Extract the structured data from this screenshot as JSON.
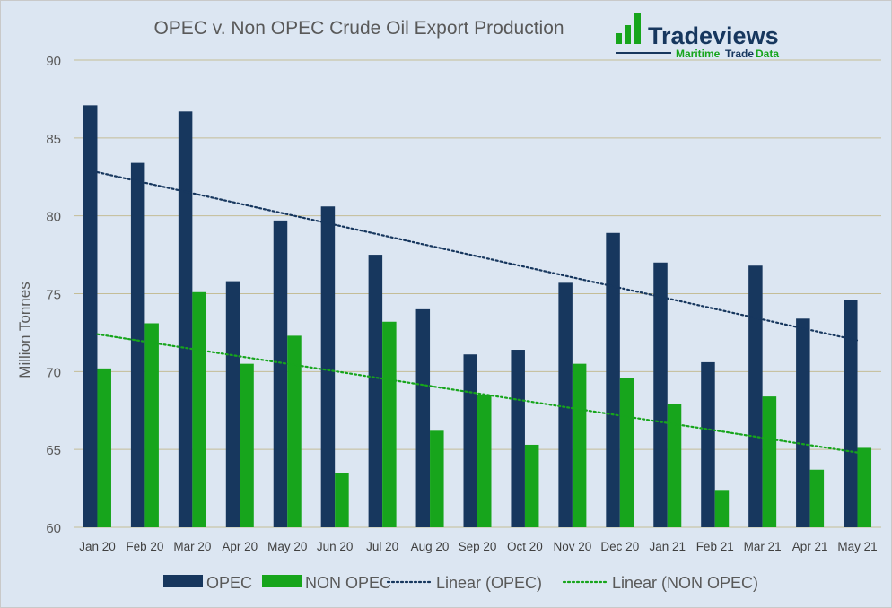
{
  "chart_data": {
    "type": "bar",
    "title": "OPEC v. Non OPEC Crude Oil Export Production",
    "xlabel": "",
    "ylabel": "Million Tonnes",
    "ylim": [
      60,
      90
    ],
    "yticks": [
      60,
      65,
      70,
      75,
      80,
      85,
      90
    ],
    "grid": true,
    "legend_position": "bottom",
    "categories": [
      "Jan 20",
      "Feb 20",
      "Mar 20",
      "Apr 20",
      "May 20",
      "Jun 20",
      "Jul 20",
      "Aug 20",
      "Sep 20",
      "Oct 20",
      "Nov 20",
      "Dec 20",
      "Jan 21",
      "Feb 21",
      "Mar 21",
      "Apr 21",
      "May 21"
    ],
    "series": [
      {
        "name": "OPEC",
        "color": "#17375e",
        "values": [
          87.1,
          83.4,
          86.7,
          75.8,
          79.7,
          80.6,
          77.5,
          74.0,
          71.1,
          71.4,
          75.7,
          78.9,
          77.0,
          70.6,
          76.8,
          73.4,
          74.6
        ]
      },
      {
        "name": "NON OPEC",
        "color": "#17a51c",
        "values": [
          70.2,
          73.1,
          75.1,
          70.5,
          72.3,
          63.5,
          73.2,
          66.2,
          68.5,
          65.3,
          70.5,
          69.6,
          67.9,
          62.4,
          68.4,
          63.7,
          65.1
        ]
      }
    ],
    "trendlines": [
      {
        "name": "Linear (OPEC)",
        "color": "#17375e",
        "style": "dotted",
        "start": 82.8,
        "end": 72.0
      },
      {
        "name": "Linear (NON OPEC)",
        "color": "#17a51c",
        "style": "dotted",
        "start": 72.4,
        "end": 64.8
      }
    ]
  },
  "logo": {
    "brand": "Tradeviews",
    "tagline_1": "Maritime",
    "tagline_2": "Trade",
    "tagline_3": "Data"
  }
}
